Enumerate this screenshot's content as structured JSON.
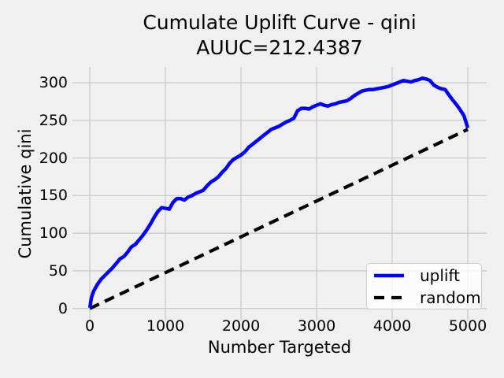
{
  "chart_data": {
    "type": "line",
    "title": "Cumulate Uplift Curve - qini",
    "subtitle": "AUUC=212.4387",
    "xlabel": "Number Targeted",
    "ylabel": "Cumulative qini",
    "xticks": [
      0,
      1000,
      2000,
      3000,
      4000,
      5000
    ],
    "yticks": [
      0,
      50,
      100,
      150,
      200,
      250,
      300
    ],
    "xlim": [
      -230,
      5250
    ],
    "ylim": [
      -16,
      321
    ],
    "grid": true,
    "background_color": "#f0f0f0",
    "grid_color": "#cbcbcb",
    "text_color": "#000000",
    "legend": {
      "position": "lower right",
      "entries": [
        "uplift",
        "random"
      ]
    },
    "series": [
      {
        "name": "uplift",
        "color": "#0000ff",
        "linestyle": "solid",
        "linewidth": 4.5,
        "points": [
          [
            0,
            1
          ],
          [
            20,
            14
          ],
          [
            50,
            23
          ],
          [
            100,
            32
          ],
          [
            150,
            39
          ],
          [
            200,
            44
          ],
          [
            250,
            49
          ],
          [
            300,
            54
          ],
          [
            350,
            60
          ],
          [
            400,
            66
          ],
          [
            450,
            69
          ],
          [
            500,
            75
          ],
          [
            550,
            82
          ],
          [
            600,
            85
          ],
          [
            650,
            91
          ],
          [
            700,
            97
          ],
          [
            750,
            104
          ],
          [
            800,
            112
          ],
          [
            850,
            121
          ],
          [
            900,
            129
          ],
          [
            950,
            134
          ],
          [
            1000,
            133
          ],
          [
            1050,
            132
          ],
          [
            1100,
            141
          ],
          [
            1150,
            146
          ],
          [
            1200,
            146
          ],
          [
            1250,
            144
          ],
          [
            1300,
            148
          ],
          [
            1350,
            150
          ],
          [
            1400,
            153
          ],
          [
            1450,
            155
          ],
          [
            1500,
            157
          ],
          [
            1550,
            163
          ],
          [
            1600,
            168
          ],
          [
            1650,
            171
          ],
          [
            1700,
            175
          ],
          [
            1750,
            181
          ],
          [
            1800,
            186
          ],
          [
            1850,
            193
          ],
          [
            1900,
            198
          ],
          [
            1950,
            201
          ],
          [
            2000,
            204
          ],
          [
            2050,
            208
          ],
          [
            2100,
            214
          ],
          [
            2150,
            218
          ],
          [
            2200,
            222
          ],
          [
            2250,
            226
          ],
          [
            2300,
            230
          ],
          [
            2350,
            234
          ],
          [
            2400,
            238
          ],
          [
            2450,
            240
          ],
          [
            2500,
            242
          ],
          [
            2550,
            245
          ],
          [
            2600,
            248
          ],
          [
            2650,
            250
          ],
          [
            2700,
            253
          ],
          [
            2750,
            263
          ],
          [
            2800,
            266
          ],
          [
            2850,
            266
          ],
          [
            2900,
            265
          ],
          [
            2950,
            268
          ],
          [
            3000,
            270
          ],
          [
            3050,
            272
          ],
          [
            3100,
            270
          ],
          [
            3150,
            269
          ],
          [
            3200,
            271
          ],
          [
            3250,
            272
          ],
          [
            3300,
            274
          ],
          [
            3350,
            275
          ],
          [
            3400,
            276
          ],
          [
            3450,
            279
          ],
          [
            3500,
            283
          ],
          [
            3550,
            286
          ],
          [
            3600,
            289
          ],
          [
            3650,
            290
          ],
          [
            3700,
            291
          ],
          [
            3750,
            291
          ],
          [
            3800,
            292
          ],
          [
            3850,
            293
          ],
          [
            3900,
            294
          ],
          [
            3950,
            295
          ],
          [
            4000,
            297
          ],
          [
            4050,
            299
          ],
          [
            4100,
            301
          ],
          [
            4150,
            303
          ],
          [
            4200,
            302
          ],
          [
            4250,
            301
          ],
          [
            4300,
            303
          ],
          [
            4350,
            304
          ],
          [
            4400,
            306
          ],
          [
            4450,
            305
          ],
          [
            4500,
            303
          ],
          [
            4550,
            297
          ],
          [
            4600,
            294
          ],
          [
            4650,
            292
          ],
          [
            4700,
            291
          ],
          [
            4750,
            284
          ],
          [
            4800,
            277
          ],
          [
            4850,
            271
          ],
          [
            4900,
            264
          ],
          [
            4950,
            256
          ],
          [
            5000,
            240
          ]
        ]
      },
      {
        "name": "random",
        "color": "#000000",
        "linestyle": "dashed",
        "linewidth": 4.2,
        "points": [
          [
            0,
            0
          ],
          [
            5000,
            238
          ]
        ]
      }
    ]
  }
}
